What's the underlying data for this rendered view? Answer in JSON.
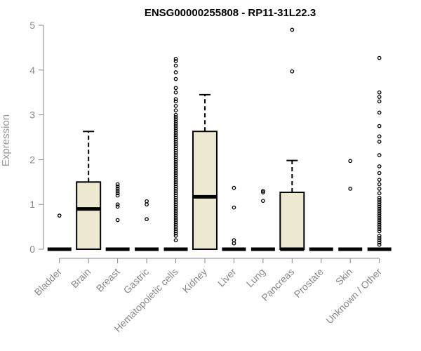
{
  "chart_data": {
    "type": "boxplot",
    "title": "ENSG00000255808 - RP11-31L22.3",
    "xlabel": "",
    "ylabel": "Expression",
    "ylim": [
      0,
      5
    ],
    "yticks": [
      0,
      1,
      2,
      3,
      4,
      5
    ],
    "grid": false,
    "box_color": "#ede8d0",
    "outline_color": "#000000",
    "axis_color": "#888888",
    "categories": [
      "Bladder",
      "Brain",
      "Breast",
      "Gastric",
      "Hematopoietic cells",
      "Kidney",
      "Liver",
      "Lung",
      "Pancreas",
      "Prostate",
      "Skin",
      "Unknown / Other"
    ],
    "boxes": [
      {
        "category": "Bladder",
        "whisker_low": 0,
        "q1": 0,
        "median": 0,
        "q3": 0,
        "whisker_high": 0,
        "outliers": [
          0.75
        ]
      },
      {
        "category": "Brain",
        "whisker_low": 0,
        "q1": 0,
        "median": 0.9,
        "q3": 1.5,
        "whisker_high": 2.63,
        "outliers": []
      },
      {
        "category": "Breast",
        "whisker_low": 0,
        "q1": 0,
        "median": 0,
        "q3": 0,
        "whisker_high": 0,
        "outliers": [
          1.45,
          1.4,
          1.35,
          1.3,
          1.25,
          1.2,
          1.0,
          0.95,
          0.65
        ]
      },
      {
        "category": "Gastric",
        "whisker_low": 0,
        "q1": 0,
        "median": 0,
        "q3": 0,
        "whisker_high": 0,
        "outliers": [
          1.07,
          1.0,
          0.67
        ]
      },
      {
        "category": "Hematopoietic cells",
        "whisker_low": 0,
        "q1": 0,
        "median": 0,
        "q3": 0,
        "whisker_high": 0,
        "outliers": [
          4.25,
          4.2,
          4.1,
          3.95,
          3.8,
          3.6,
          3.5,
          3.35,
          3.3,
          3.2,
          3.1,
          3.0,
          2.95,
          2.9,
          2.85,
          2.8,
          2.75,
          2.7,
          2.65,
          2.6,
          2.55,
          2.5,
          2.45,
          2.4,
          2.35,
          2.3,
          2.25,
          2.2,
          2.15,
          2.1,
          2.05,
          2.0,
          1.95,
          1.9,
          1.85,
          1.8,
          1.75,
          1.7,
          1.65,
          1.6,
          1.55,
          1.5,
          1.45,
          1.4,
          1.35,
          1.3,
          1.25,
          1.2,
          1.15,
          1.1,
          1.05,
          1.0,
          0.95,
          0.9,
          0.85,
          0.8,
          0.75,
          0.7,
          0.65,
          0.6,
          0.55,
          0.5,
          0.45,
          0.4,
          0.35,
          0.3,
          0.2
        ]
      },
      {
        "category": "Kidney",
        "whisker_low": 0,
        "q1": 0,
        "median": 1.17,
        "q3": 2.63,
        "whisker_high": 3.45,
        "outliers": []
      },
      {
        "category": "Liver",
        "whisker_low": 0,
        "q1": 0,
        "median": 0,
        "q3": 0,
        "whisker_high": 0,
        "outliers": [
          1.37,
          0.93,
          0.2,
          0.13
        ]
      },
      {
        "category": "Lung",
        "whisker_low": 0,
        "q1": 0,
        "median": 0,
        "q3": 0,
        "whisker_high": 0,
        "outliers": [
          1.3,
          1.27,
          1.08
        ]
      },
      {
        "category": "Pancreas",
        "whisker_low": 0,
        "q1": 0,
        "median": 0,
        "q3": 1.27,
        "whisker_high": 1.98,
        "outliers": [
          4.9,
          3.97
        ]
      },
      {
        "category": "Prostate",
        "whisker_low": 0,
        "q1": 0,
        "median": 0,
        "q3": 0,
        "whisker_high": 0,
        "outliers": []
      },
      {
        "category": "Skin",
        "whisker_low": 0,
        "q1": 0,
        "median": 0,
        "q3": 0,
        "whisker_high": 0,
        "outliers": [
          1.97,
          1.35
        ]
      },
      {
        "category": "Unknown / Other",
        "whisker_low": 0,
        "q1": 0,
        "median": 0,
        "q3": 0,
        "whisker_high": 0,
        "outliers": [
          4.27,
          3.5,
          3.4,
          3.3,
          3.05,
          2.75,
          2.52,
          2.4,
          2.1,
          1.85,
          1.7,
          1.55,
          1.45,
          1.35,
          1.25,
          1.15,
          1.1,
          1.05,
          1.0,
          0.95,
          0.9,
          0.85,
          0.8,
          0.75,
          0.7,
          0.65,
          0.6,
          0.55,
          0.5,
          0.45,
          0.4,
          0.3,
          0.25,
          0.2,
          0.15,
          0.1
        ]
      }
    ]
  }
}
